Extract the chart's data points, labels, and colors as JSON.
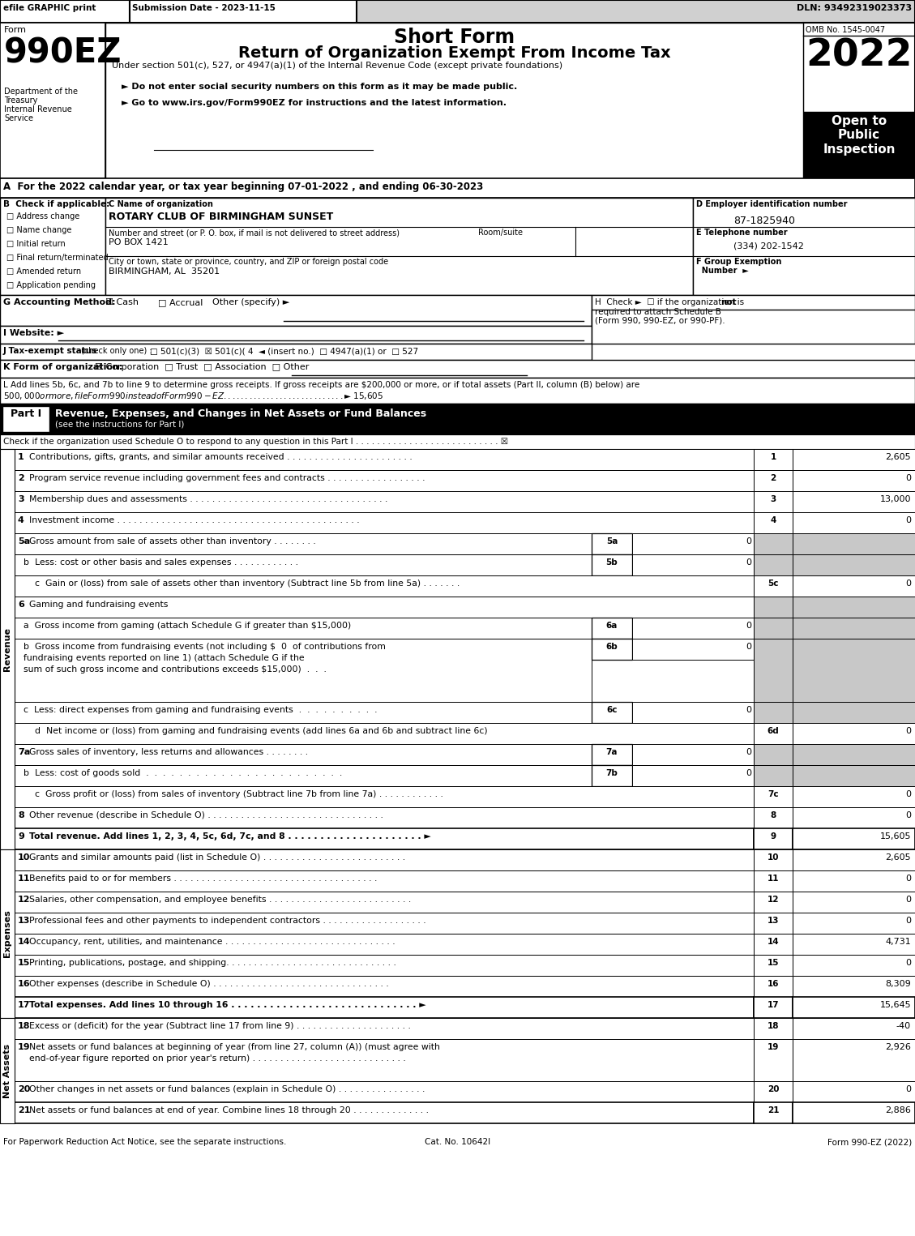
{
  "title_short": "Short Form",
  "title_main": "Return of Organization Exempt From Income Tax",
  "subtitle": "Under section 501(c), 527, or 4947(a)(1) of the Internal Revenue Code (except private foundations)",
  "year": "2022",
  "form_number": "990EZ",
  "omb": "OMB No. 1545-0047",
  "efile_text": "efile GRAPHIC print",
  "submission_date": "Submission Date - 2023-11-15",
  "dln": "DLN: 93492319023373",
  "dept1": "Department of the",
  "dept2": "Treasury",
  "dept3": "Internal Revenue",
  "dept4": "Service",
  "open_to": "Open to\nPublic\nInspection",
  "bullet1": "► Do not enter social security numbers on this form as it may be made public.",
  "bullet2": "► Go to www.irs.gov/Form990EZ for instructions and the latest information.",
  "line_A": "A  For the 2022 calendar year, or tax year beginning 07-01-2022 , and ending 06-30-2023",
  "checks_B": [
    "Address change",
    "Name change",
    "Initial return",
    "Final return/terminated",
    "Amended return",
    "Application pending"
  ],
  "org_name": "ROTARY CLUB OF BIRMINGHAM SUNSET",
  "label_street": "Number and street (or P. O. box, if mail is not delivered to street address)",
  "room_suite": "Room/suite",
  "street_addr": "PO BOX 1421",
  "label_city": "City or town, state or province, country, and ZIP or foreign postal code",
  "city_addr": "BIRMINGHAM, AL  35201",
  "ein": "87-1825940",
  "phone": "(334) 202-1542",
  "revenue_lines": [
    {
      "num": "1",
      "desc": "Contributions, gifts, grants, and similar amounts received . . . . . . . . . . . . . . . . . . . . . . .",
      "line": "1",
      "value": "2,605"
    },
    {
      "num": "2",
      "desc": "Program service revenue including government fees and contracts . . . . . . . . . . . . . . . . . .",
      "line": "2",
      "value": "0"
    },
    {
      "num": "3",
      "desc": "Membership dues and assessments . . . . . . . . . . . . . . . . . . . . . . . . . . . . . . . . . . . .",
      "line": "3",
      "value": "13,000"
    },
    {
      "num": "4",
      "desc": "Investment income . . . . . . . . . . . . . . . . . . . . . . . . . . . . . . . . . . . . . . . . . . . .",
      "line": "4",
      "value": "0"
    }
  ],
  "expense_lines": [
    {
      "num": "10",
      "desc": "Grants and similar amounts paid (list in Schedule O) . . . . . . . . . . . . . . . . . . . . . . . . . .",
      "line": "10",
      "value": "2,605"
    },
    {
      "num": "11",
      "desc": "Benefits paid to or for members . . . . . . . . . . . . . . . . . . . . . . . . . . . . . . . . . . . . .",
      "line": "11",
      "value": "0"
    },
    {
      "num": "12",
      "desc": "Salaries, other compensation, and employee benefits . . . . . . . . . . . . . . . . . . . . . . . . . .",
      "line": "12",
      "value": "0"
    },
    {
      "num": "13",
      "desc": "Professional fees and other payments to independent contractors . . . . . . . . . . . . . . . . . . .",
      "line": "13",
      "value": "0"
    },
    {
      "num": "14",
      "desc": "Occupancy, rent, utilities, and maintenance . . . . . . . . . . . . . . . . . . . . . . . . . . . . . . .",
      "line": "14",
      "value": "4,731"
    },
    {
      "num": "15",
      "desc": "Printing, publications, postage, and shipping. . . . . . . . . . . . . . . . . . . . . . . . . . . . . . .",
      "line": "15",
      "value": "0"
    },
    {
      "num": "16",
      "desc": "Other expenses (describe in Schedule O) . . . . . . . . . . . . . . . . . . . . . . . . . . . . . . . .",
      "line": "16",
      "value": "8,309"
    }
  ],
  "footer_left": "For Paperwork Reduction Act Notice, see the separate instructions.",
  "footer_cat": "Cat. No. 10642I",
  "footer_right": "Form 990-EZ (2022)",
  "revenue_label": "Revenue",
  "expenses_label": "Expenses",
  "net_assets_label": "Net Assets"
}
